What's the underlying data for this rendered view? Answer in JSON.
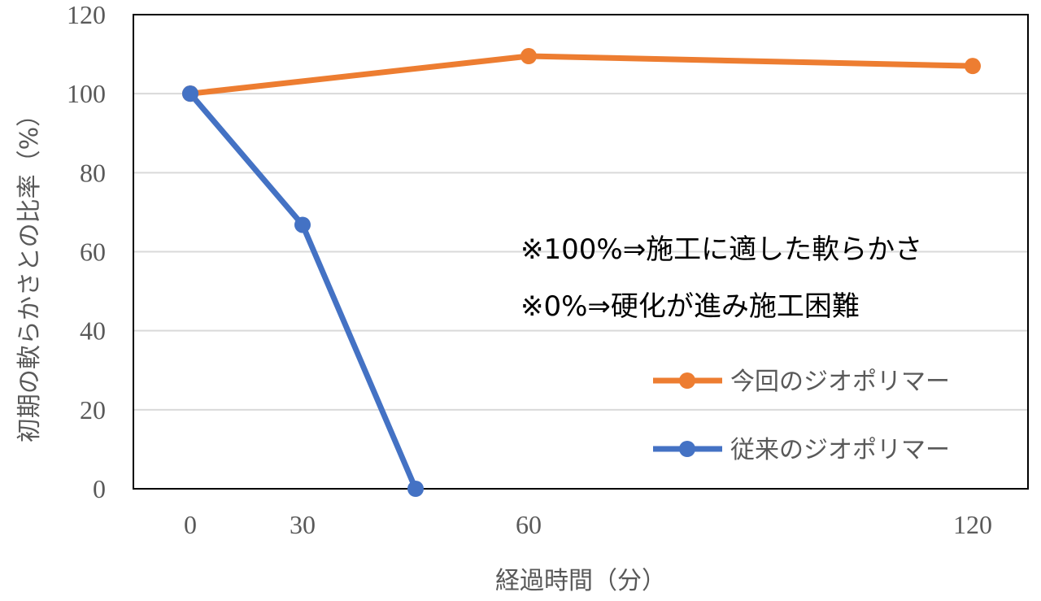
{
  "chart_data": {
    "type": "line",
    "xlabel": "経過時間（分）",
    "ylabel": "初期の軟らかさとの比率（%）",
    "ylim": [
      0,
      120
    ],
    "yticks": [
      0,
      20,
      40,
      60,
      80,
      100,
      120
    ],
    "xtick_labels": [
      "0",
      "30",
      "60",
      "120"
    ],
    "grid": true,
    "legend_position": "right",
    "series": [
      {
        "name": "今回のジオポリマー",
        "color": "#ED7D31",
        "x": [
          "0",
          "60",
          "120"
        ],
        "y": [
          100,
          109.5,
          107
        ]
      },
      {
        "name": "従来のジオポリマー",
        "color": "#4472C4",
        "x": [
          "0",
          "30",
          "45"
        ],
        "y": [
          100,
          66.8,
          0
        ]
      }
    ],
    "annotations": [
      "※100%⇒施工に適した軟らかさ",
      "※0%⇒硬化が進み施工困難"
    ]
  }
}
